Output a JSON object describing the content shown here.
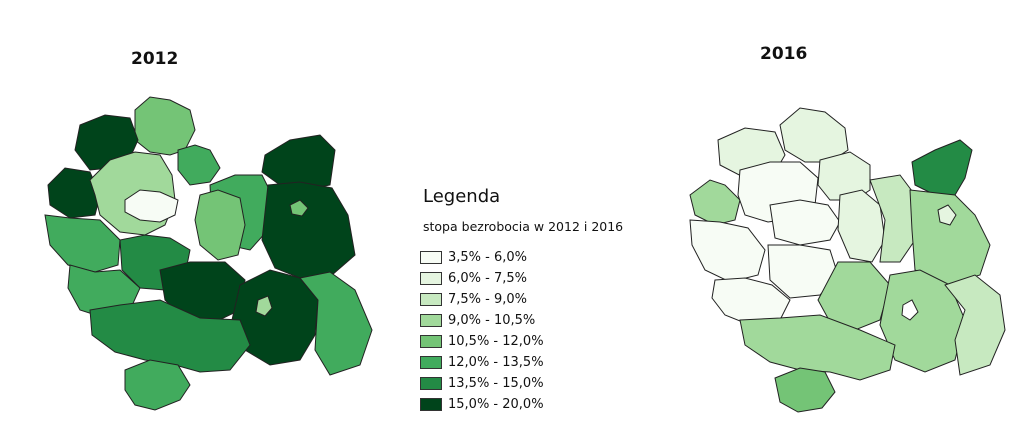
{
  "maps": {
    "left": {
      "title": "2012"
    },
    "right": {
      "title": "2016"
    }
  },
  "legend": {
    "title": "Legenda",
    "subtitle": "stopa bezrobocia w 2012 i 2016",
    "classes": [
      {
        "label": "3,5% - 6,0%",
        "color": "#f7fcf5"
      },
      {
        "label": "6,0% - 7,5%",
        "color": "#e5f5e0"
      },
      {
        "label": "7,5% - 9,0%",
        "color": "#c7e9c0"
      },
      {
        "label": "9,0% - 10,5%",
        "color": "#a1d99b"
      },
      {
        "label": "10,5% - 12,0%",
        "color": "#74c476"
      },
      {
        "label": "12,0% - 13,5%",
        "color": "#41ab5d"
      },
      {
        "label": "13,5% - 15,0%",
        "color": "#238b45"
      },
      {
        "label": "15,0% - 20,0%",
        "color": "#00441b"
      }
    ]
  }
}
